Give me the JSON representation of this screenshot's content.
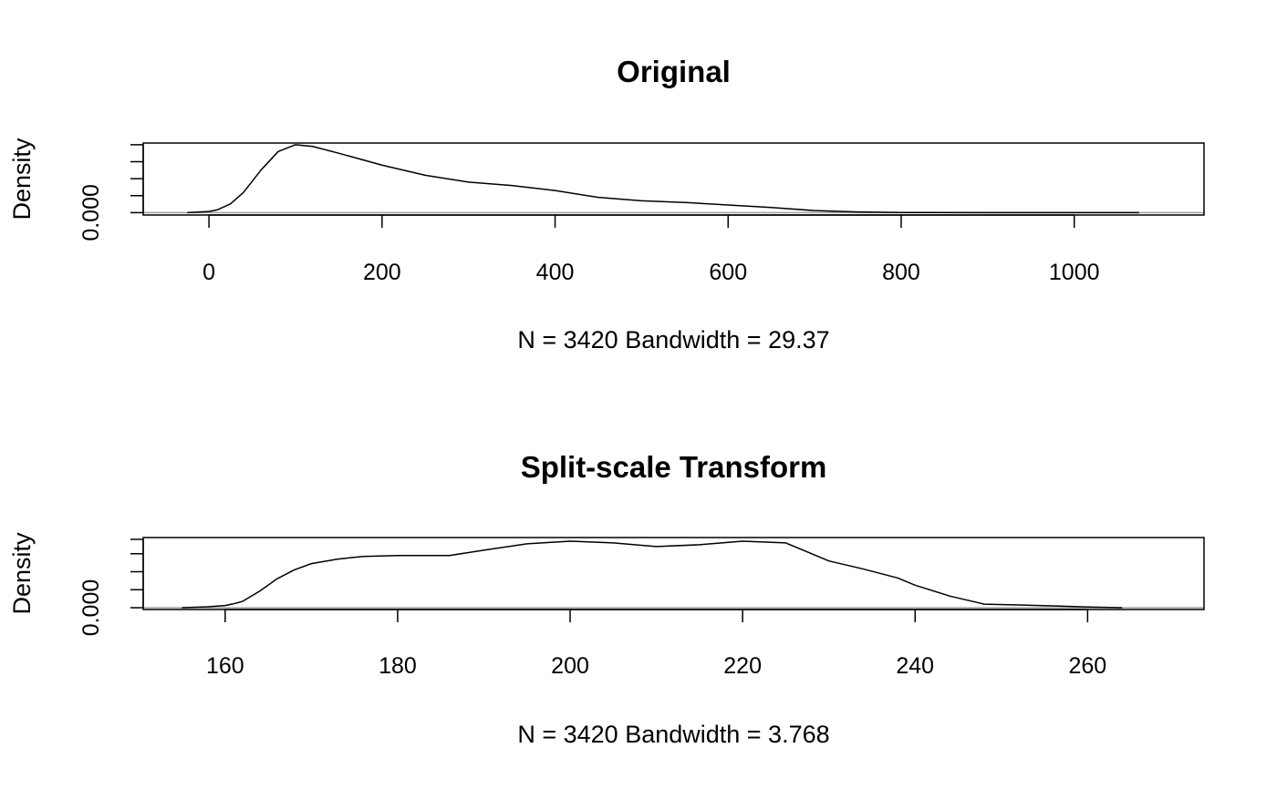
{
  "chart_data": [
    {
      "type": "area",
      "title": "Original",
      "xlabel": "N = 3420   Bandwidth = 29.37",
      "ylabel": "Density",
      "xlim": [
        -76,
        1150
      ],
      "ylim": [
        -0.00014,
        0.0041
      ],
      "x_ticks": [
        0,
        200,
        400,
        600,
        800,
        1000
      ],
      "x_tick_labels": [
        "0",
        "200",
        "400",
        "600",
        "800",
        "1000"
      ],
      "y_ticks": [
        0,
        0.001,
        0.002,
        0.003,
        0.004
      ],
      "y_tick_labels": [
        "0.000",
        "",
        "",
        "",
        ""
      ],
      "series": [
        {
          "x": [
            -25,
            0,
            10,
            25,
            40,
            60,
            80,
            100,
            120,
            150,
            200,
            250,
            300,
            350,
            400,
            450,
            500,
            550,
            600,
            650,
            700,
            750,
            800,
            900,
            1000,
            1075
          ],
          "y": [
            0,
            7e-05,
            0.00017,
            0.00052,
            0.0012,
            0.0025,
            0.0036,
            0.004,
            0.0039,
            0.0035,
            0.0028,
            0.0022,
            0.0018,
            0.0016,
            0.0013,
            0.0009,
            0.0007,
            0.0006,
            0.00045,
            0.0003,
            0.00012,
            4e-05,
            1e-05,
            0,
            0,
            0
          ]
        }
      ]
    },
    {
      "type": "area",
      "title": "Split-scale Transform",
      "xlabel": "N = 3420   Bandwidth = 3.768",
      "ylabel": "Density",
      "xlim": [
        150.5,
        273.5
      ],
      "ylim": [
        -0.001,
        0.039
      ],
      "x_ticks": [
        160,
        180,
        200,
        220,
        240,
        260
      ],
      "x_tick_labels": [
        "160",
        "180",
        "200",
        "220",
        "240",
        "260"
      ],
      "y_ticks": [
        0,
        0.01,
        0.02,
        0.03,
        0.038
      ],
      "y_tick_labels": [
        "0.000",
        "",
        "",
        "",
        ""
      ],
      "series": [
        {
          "x": [
            155,
            158,
            160,
            161,
            162,
            164,
            166,
            168,
            170,
            173,
            176,
            180,
            186,
            190,
            195,
            200,
            205,
            210,
            215,
            220,
            225,
            230,
            234,
            238,
            240,
            244,
            248,
            252,
            256,
            260,
            264
          ],
          "y": [
            0,
            0.0005,
            0.0012,
            0.0022,
            0.0035,
            0.0092,
            0.016,
            0.021,
            0.0245,
            0.027,
            0.0285,
            0.029,
            0.029,
            0.032,
            0.0355,
            0.037,
            0.036,
            0.034,
            0.035,
            0.037,
            0.036,
            0.026,
            0.0215,
            0.0165,
            0.0125,
            0.0065,
            0.002,
            0.0015,
            0.001,
            0.0004,
            0
          ]
        }
      ]
    }
  ]
}
